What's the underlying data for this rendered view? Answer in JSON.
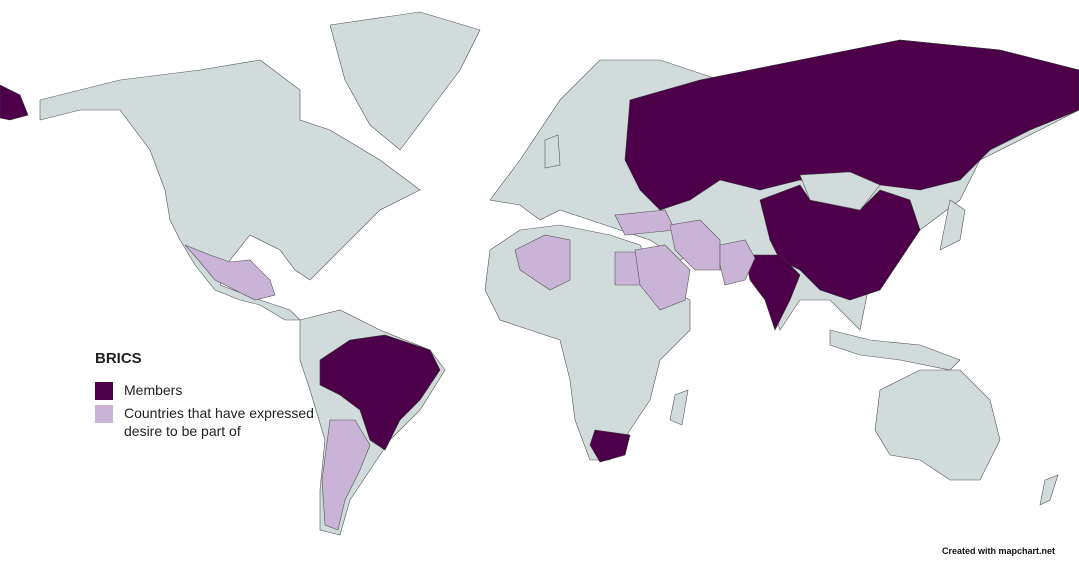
{
  "legend": {
    "title": "BRICS",
    "items": [
      {
        "label": "Members",
        "color": "#4d0049"
      },
      {
        "label": "Countries that have expressed desire to be part of",
        "color": "#c9b3d6"
      }
    ]
  },
  "map": {
    "land_color": "#d1dbdb",
    "members": [
      "Brazil",
      "Russia",
      "India",
      "China",
      "South Africa"
    ],
    "desire": [
      "Mexico",
      "Argentina",
      "Algeria",
      "Egypt",
      "Turkey",
      "Saudi Arabia",
      "Iran",
      "Pakistan"
    ]
  },
  "credit": "Created with mapchart.net"
}
